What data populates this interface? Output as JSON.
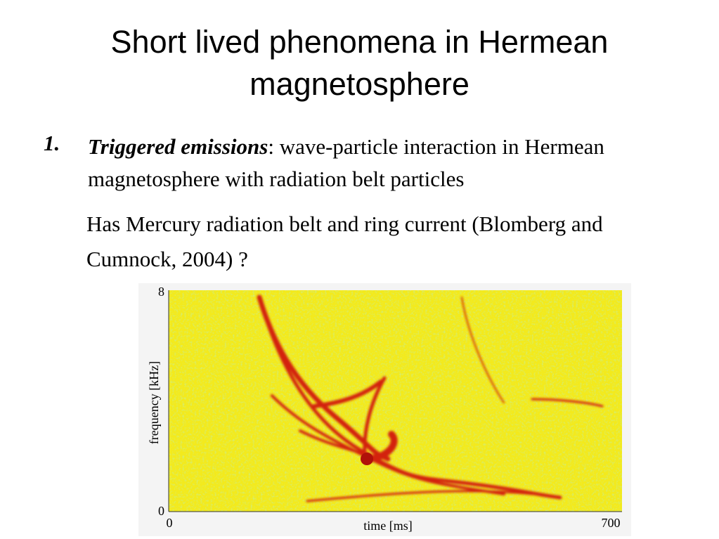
{
  "title": "Short lived phenomena in Hermean magnetosphere",
  "list": [
    {
      "number": "1.",
      "term": "Triggered emissions",
      "text": ": wave-particle interaction in Hermean magnetosphere with radiation belt particles"
    }
  ],
  "paragraph": "Has Mercury radiation belt and ring current (Blomberg and Cumnock, 2004) ?",
  "figure": {
    "y_label": "frequency [kHz]",
    "y_ticks": [
      "8",
      "0"
    ],
    "x_label": "time [ms]",
    "x_ticks": [
      "0",
      "700"
    ]
  }
}
